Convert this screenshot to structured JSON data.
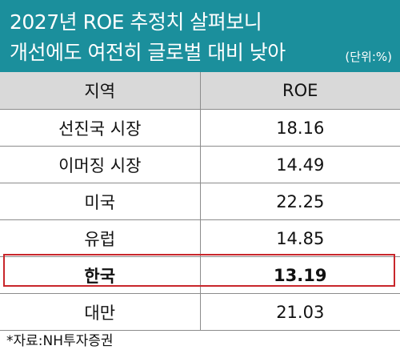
{
  "title": {
    "line1": "2027년 ROE 추정치 살펴보니",
    "line2": "개선에도 여전히 글로벌 대비 낮아",
    "unit": "(단위:%)"
  },
  "chart_data": {
    "type": "table",
    "columns": [
      "지역",
      "ROE"
    ],
    "rows": [
      {
        "region": "선진국 시장",
        "roe": "18.16"
      },
      {
        "region": "이머징 시장",
        "roe": "14.49"
      },
      {
        "region": "미국",
        "roe": "22.25"
      },
      {
        "region": "유럽",
        "roe": "14.85"
      },
      {
        "region": "한국",
        "roe": "13.19"
      },
      {
        "region": "대만",
        "roe": "21.03"
      }
    ],
    "highlight_row": "한국",
    "highlight_color": "#c8262b",
    "header_color": "#1b8f9c"
  },
  "source": "*자료:NH투자증권"
}
